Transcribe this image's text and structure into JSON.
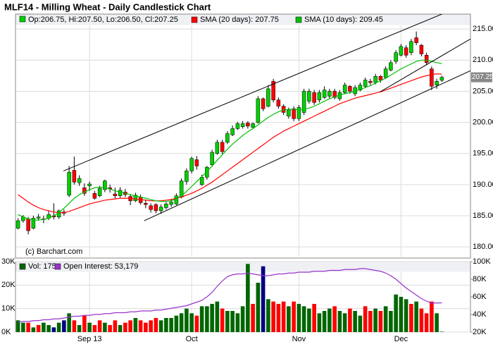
{
  "chart_data": [
    {
      "type": "candlestick",
      "title": "MLF14 - Milling Wheat - Daily Candlestick Chart",
      "ohlc_legend": "Op:206.75, Hi:207.50, Lo:206.50, Cl:207.25",
      "watermark": "(c) Barchart.com",
      "categories": [
        null,
        null,
        null,
        null,
        null,
        null,
        null,
        null,
        null,
        null,
        null,
        null,
        null,
        null,
        "Sep 13",
        null,
        null,
        null,
        null,
        null,
        null,
        null,
        null,
        null,
        null,
        null,
        null,
        null,
        null,
        null,
        null,
        null,
        null,
        null,
        "Oct",
        null,
        null,
        null,
        null,
        null,
        null,
        null,
        null,
        null,
        null,
        null,
        null,
        null,
        null,
        null,
        null,
        null,
        null,
        null,
        null,
        "Nov",
        null,
        null,
        null,
        null,
        null,
        null,
        null,
        null,
        null,
        null,
        null,
        null,
        null,
        null,
        null,
        null,
        null,
        null,
        null,
        "Dec",
        null,
        null,
        null,
        null,
        null,
        null,
        null,
        null
      ],
      "open": [
        183.0,
        184.2,
        184.5,
        183.0,
        184.6,
        184.5,
        184.6,
        185.0,
        184.8,
        185.6,
        188.3,
        192.3,
        190.3,
        189.5,
        189.8,
        188.6,
        188.2,
        189.2,
        189.5,
        188.5,
        188.2,
        188.8,
        188.1,
        187.4,
        188.0,
        187.0,
        186.6,
        186.8,
        185.8,
        186.3,
        186.8,
        186.9,
        188.0,
        190.5,
        192.2,
        194.0,
        190.0,
        191.2,
        193.2,
        195.0,
        196.8,
        196.8,
        198.0,
        199.0,
        199.3,
        199.9,
        199.2,
        200.0,
        203.8,
        202.6,
        206.6,
        203.6,
        202.6,
        201.0,
        202.2,
        200.6,
        201.6,
        203.4,
        204.8,
        203.6,
        204.0,
        204.2,
        205.0,
        203.8,
        204.8,
        205.8,
        204.6,
        205.2,
        205.8,
        206.6,
        206.4,
        207.4,
        207.2,
        208.4,
        209.8,
        210.8,
        212.0,
        211.2,
        213.6,
        212.4,
        210.8,
        208.6,
        206.0,
        206.75
      ],
      "high": [
        184.6,
        185.1,
        184.8,
        185.0,
        185.3,
        185.0,
        185.8,
        187.0,
        186.0,
        186.0,
        193.0,
        194.5,
        191.5,
        190.2,
        190.5,
        189.0,
        189.8,
        190.8,
        190.0,
        189.5,
        189.6,
        189.3,
        188.5,
        188.7,
        188.4,
        187.6,
        187.0,
        187.0,
        186.8,
        187.2,
        187.7,
        188.6,
        191.0,
        192.6,
        194.5,
        194.6,
        191.6,
        193.0,
        195.6,
        197.2,
        197.2,
        198.6,
        199.5,
        200.1,
        200.2,
        200.2,
        200.0,
        204.2,
        204.0,
        206.0,
        207.0,
        204.0,
        202.9,
        202.4,
        202.6,
        202.8,
        205.4,
        205.4,
        205.2,
        205.2,
        205.8,
        205.4,
        205.4,
        205.2,
        206.4,
        206.0,
        206.0,
        206.4,
        207.2,
        207.0,
        207.8,
        207.6,
        209.0,
        210.0,
        211.6,
        212.6,
        212.4,
        213.4,
        214.6,
        212.6,
        211.2,
        209.0,
        207.0,
        207.5
      ],
      "low": [
        182.8,
        183.9,
        182.0,
        182.8,
        184.2,
        183.8,
        184.3,
        184.4,
        184.5,
        185.0,
        188.0,
        190.0,
        189.8,
        188.2,
        189.0,
        187.6,
        188.0,
        188.8,
        188.7,
        187.8,
        187.9,
        188.0,
        186.7,
        187.2,
        186.8,
        186.2,
        185.5,
        185.4,
        185.3,
        186.0,
        186.4,
        186.7,
        187.8,
        190.0,
        191.8,
        192.4,
        189.8,
        190.8,
        192.9,
        194.8,
        194.9,
        196.5,
        197.8,
        198.8,
        199.0,
        199.0,
        199.0,
        199.8,
        201.8,
        202.4,
        203.2,
        202.2,
        201.2,
        200.6,
        200.2,
        200.2,
        201.2,
        203.0,
        202.8,
        203.2,
        203.8,
        203.8,
        203.7,
        203.5,
        204.6,
        204.6,
        204.2,
        205.0,
        205.5,
        206.0,
        206.1,
        206.4,
        207.0,
        208.2,
        209.4,
        210.6,
        210.4,
        210.8,
        212.4,
        210.6,
        209.2,
        205.2,
        205.4,
        206.5
      ],
      "close": [
        184.2,
        184.8,
        182.6,
        184.6,
        184.8,
        184.4,
        185.2,
        184.8,
        185.8,
        185.4,
        192.0,
        190.4,
        191.0,
        188.6,
        190.1,
        187.8,
        189.4,
        190.6,
        189.3,
        188.2,
        189.1,
        188.4,
        187.4,
        188.3,
        187.1,
        186.8,
        186.0,
        185.8,
        186.4,
        186.9,
        187.2,
        188.2,
        190.6,
        192.2,
        194.2,
        193.0,
        191.2,
        192.8,
        195.2,
        196.8,
        195.3,
        198.2,
        199.0,
        199.8,
        199.8,
        199.4,
        199.8,
        203.8,
        202.2,
        205.4,
        203.6,
        202.6,
        201.6,
        202.0,
        200.6,
        202.4,
        205.0,
        205.0,
        203.2,
        204.8,
        205.2,
        205.0,
        204.0,
        204.8,
        206.0,
        205.0,
        205.6,
        206.0,
        206.8,
        206.4,
        207.4,
        206.8,
        208.6,
        209.6,
        211.2,
        212.2,
        210.8,
        213.0,
        212.8,
        211.0,
        209.6,
        205.8,
        206.6,
        207.25
      ],
      "up_color": "#00d000",
      "down_color": "#ff0000",
      "series": [
        {
          "name": "SMA (20 days): 207.75",
          "color": "#ff0000",
          "values": [
            188.4,
            187.8,
            187.2,
            186.7,
            186.3,
            186.0,
            185.8,
            185.6,
            185.5,
            185.5,
            185.7,
            186.0,
            186.3,
            186.6,
            186.9,
            187.1,
            187.3,
            187.5,
            187.6,
            187.7,
            187.8,
            187.8,
            187.8,
            187.7,
            187.6,
            187.5,
            187.4,
            187.4,
            187.4,
            187.5,
            187.6,
            187.8,
            188.0,
            188.3,
            188.6,
            189.0,
            189.4,
            189.9,
            190.4,
            191.0,
            191.6,
            192.2,
            192.8,
            193.4,
            194.0,
            194.6,
            195.2,
            195.8,
            196.4,
            197.0,
            197.6,
            198.1,
            198.6,
            199.0,
            199.4,
            199.8,
            200.2,
            200.6,
            201.0,
            201.4,
            201.8,
            202.2,
            202.6,
            203.0,
            203.3,
            203.6,
            203.9,
            204.1,
            204.3,
            204.5,
            204.7,
            204.9,
            205.2,
            205.5,
            205.8,
            206.1,
            206.4,
            206.7,
            207.0,
            207.3,
            207.5,
            207.7,
            207.8,
            207.75
          ]
        },
        {
          "name": "SMA (10 days): 209.45",
          "color": "#00c000",
          "values": [
            185.2,
            184.8,
            184.5,
            184.3,
            184.3,
            184.4,
            184.6,
            185.0,
            185.5,
            186.2,
            187.0,
            187.8,
            188.4,
            188.8,
            189.2,
            189.5,
            189.6,
            189.5,
            189.3,
            189.0,
            188.8,
            188.6,
            188.4,
            188.2,
            188.0,
            187.8,
            187.6,
            187.4,
            187.3,
            187.3,
            187.4,
            187.7,
            188.2,
            188.9,
            189.7,
            190.5,
            191.3,
            192.1,
            193.0,
            193.9,
            194.8,
            195.7,
            196.5,
            197.2,
            197.9,
            198.5,
            199.0,
            199.6,
            200.2,
            200.8,
            201.3,
            201.7,
            202.0,
            202.1,
            202.1,
            202.0,
            202.1,
            202.3,
            202.6,
            203.0,
            203.4,
            203.8,
            204.1,
            204.4,
            204.6,
            204.8,
            205.0,
            205.3,
            205.6,
            205.9,
            206.3,
            206.7,
            207.1,
            207.6,
            208.1,
            208.6,
            209.0,
            209.4,
            209.8,
            210.0,
            210.0,
            209.8,
            209.6,
            209.45
          ]
        }
      ],
      "trend_lines": [
        {
          "x": [
            8.9,
            88.6
          ],
          "y": [
            192.2,
            219.3
          ]
        },
        {
          "x": [
            24.7,
            88.6
          ],
          "y": [
            184.2,
            208.3
          ]
        },
        {
          "x": [
            70.9,
            88.6
          ],
          "y": [
            204.9,
            213.4
          ]
        }
      ],
      "last_price": 207.25,
      "ylim": [
        178.2,
        217.4
      ],
      "yticks": [
        {
          "value": 180,
          "label": "180.00"
        },
        {
          "value": 185,
          "label": "185.00"
        },
        {
          "value": 190,
          "label": "190.00"
        },
        {
          "value": 195,
          "label": "195.00"
        },
        {
          "value": 200,
          "label": "200.00"
        },
        {
          "value": 205,
          "label": "205.00"
        },
        {
          "value": 210,
          "label": "210.00"
        },
        {
          "value": 215,
          "label": "215.00"
        }
      ],
      "grid": true
    },
    {
      "type": "bar",
      "series": [
        {
          "name": "Vol: 175",
          "color": "#006600",
          "values": [
            5000,
            4000,
            4000,
            2000,
            3000,
            4000,
            3000,
            2000,
            4000,
            5000,
            8000,
            5000,
            3000,
            7000,
            4000,
            3000,
            5000,
            4000,
            3000,
            5000,
            3000,
            4000,
            5000,
            6000,
            5000,
            4000,
            5000,
            6000,
            5000,
            6000,
            6000,
            7000,
            8000,
            10000,
            8000,
            7000,
            11000,
            11000,
            12000,
            13000,
            10000,
            9000,
            9000,
            8000,
            11000,
            29000,
            12000,
            21000,
            28000,
            14000,
            13000,
            12000,
            13000,
            11000,
            13000,
            12000,
            11000,
            10000,
            12000,
            8000,
            9000,
            10000,
            11000,
            9000,
            8000,
            10000,
            9000,
            7000,
            11000,
            9000,
            10000,
            9000,
            11000,
            9000,
            16000,
            15000,
            14000,
            12000,
            13000,
            10000,
            8000,
            13000,
            8000,
            175
          ],
          "bar_colors": [
            "g",
            "g",
            "r",
            "g",
            "r",
            "g",
            "g",
            "b",
            "g",
            "b",
            "g",
            "r",
            "g",
            "r",
            "g",
            "r",
            "r",
            "g",
            "r",
            "r",
            "g",
            "r",
            "r",
            "g",
            "r",
            "r",
            "r",
            "r",
            "g",
            "g",
            "g",
            "g",
            "g",
            "g",
            "g",
            "r",
            "g",
            "g",
            "g",
            "g",
            "r",
            "g",
            "g",
            "g",
            "g",
            "g",
            "r",
            "g",
            "b",
            "g",
            "r",
            "r",
            "r",
            "g",
            "r",
            "g",
            "g",
            "g",
            "r",
            "g",
            "g",
            "g",
            "r",
            "g",
            "g",
            "r",
            "g",
            "g",
            "r",
            "r",
            "g",
            "r",
            "g",
            "g",
            "g",
            "g",
            "g",
            "r",
            "g",
            "r",
            "r",
            "r",
            "g",
            "g"
          ],
          "palette": {
            "g": "#006600",
            "r": "#ff0000",
            "b": "#000080"
          }
        },
        {
          "name": "Open Interest: 53,179",
          "color": "#9933cc",
          "axis": "y2",
          "values": [
            31000,
            32000,
            32000,
            33000,
            33000,
            34000,
            34000,
            35000,
            35000,
            36000,
            37000,
            38000,
            38000,
            39000,
            39000,
            40000,
            40000,
            41000,
            41000,
            42000,
            42000,
            42000,
            43000,
            43000,
            44000,
            44000,
            44000,
            45000,
            45000,
            46000,
            47000,
            48000,
            49000,
            50000,
            52000,
            54000,
            56000,
            60000,
            65000,
            72000,
            78000,
            83000,
            85000,
            86000,
            86000,
            87000,
            86000,
            85000,
            84000,
            84000,
            85000,
            86000,
            86000,
            87000,
            87000,
            88000,
            88000,
            88000,
            89000,
            89000,
            89000,
            90000,
            90000,
            90000,
            91000,
            91000,
            91000,
            92000,
            92000,
            91000,
            90000,
            89000,
            87000,
            84000,
            80000,
            75000,
            70000,
            66000,
            62000,
            58000,
            55000,
            53000,
            53000,
            53179
          ]
        }
      ],
      "ylim": [
        0,
        30000
      ],
      "yticks": [
        {
          "value": 0,
          "label": "0K"
        },
        {
          "value": 10000,
          "label": "10K"
        },
        {
          "value": 20000,
          "label": "20K"
        },
        {
          "value": 30000,
          "label": "30K"
        }
      ],
      "y2lim": [
        20000,
        100000
      ],
      "y2ticks": [
        {
          "value": 20000,
          "label": "20K"
        },
        {
          "value": 40000,
          "label": "40K"
        },
        {
          "value": 60000,
          "label": "60K"
        },
        {
          "value": 80000,
          "label": "80K"
        },
        {
          "value": 100000,
          "label": "100K"
        }
      ],
      "grid": true
    }
  ]
}
